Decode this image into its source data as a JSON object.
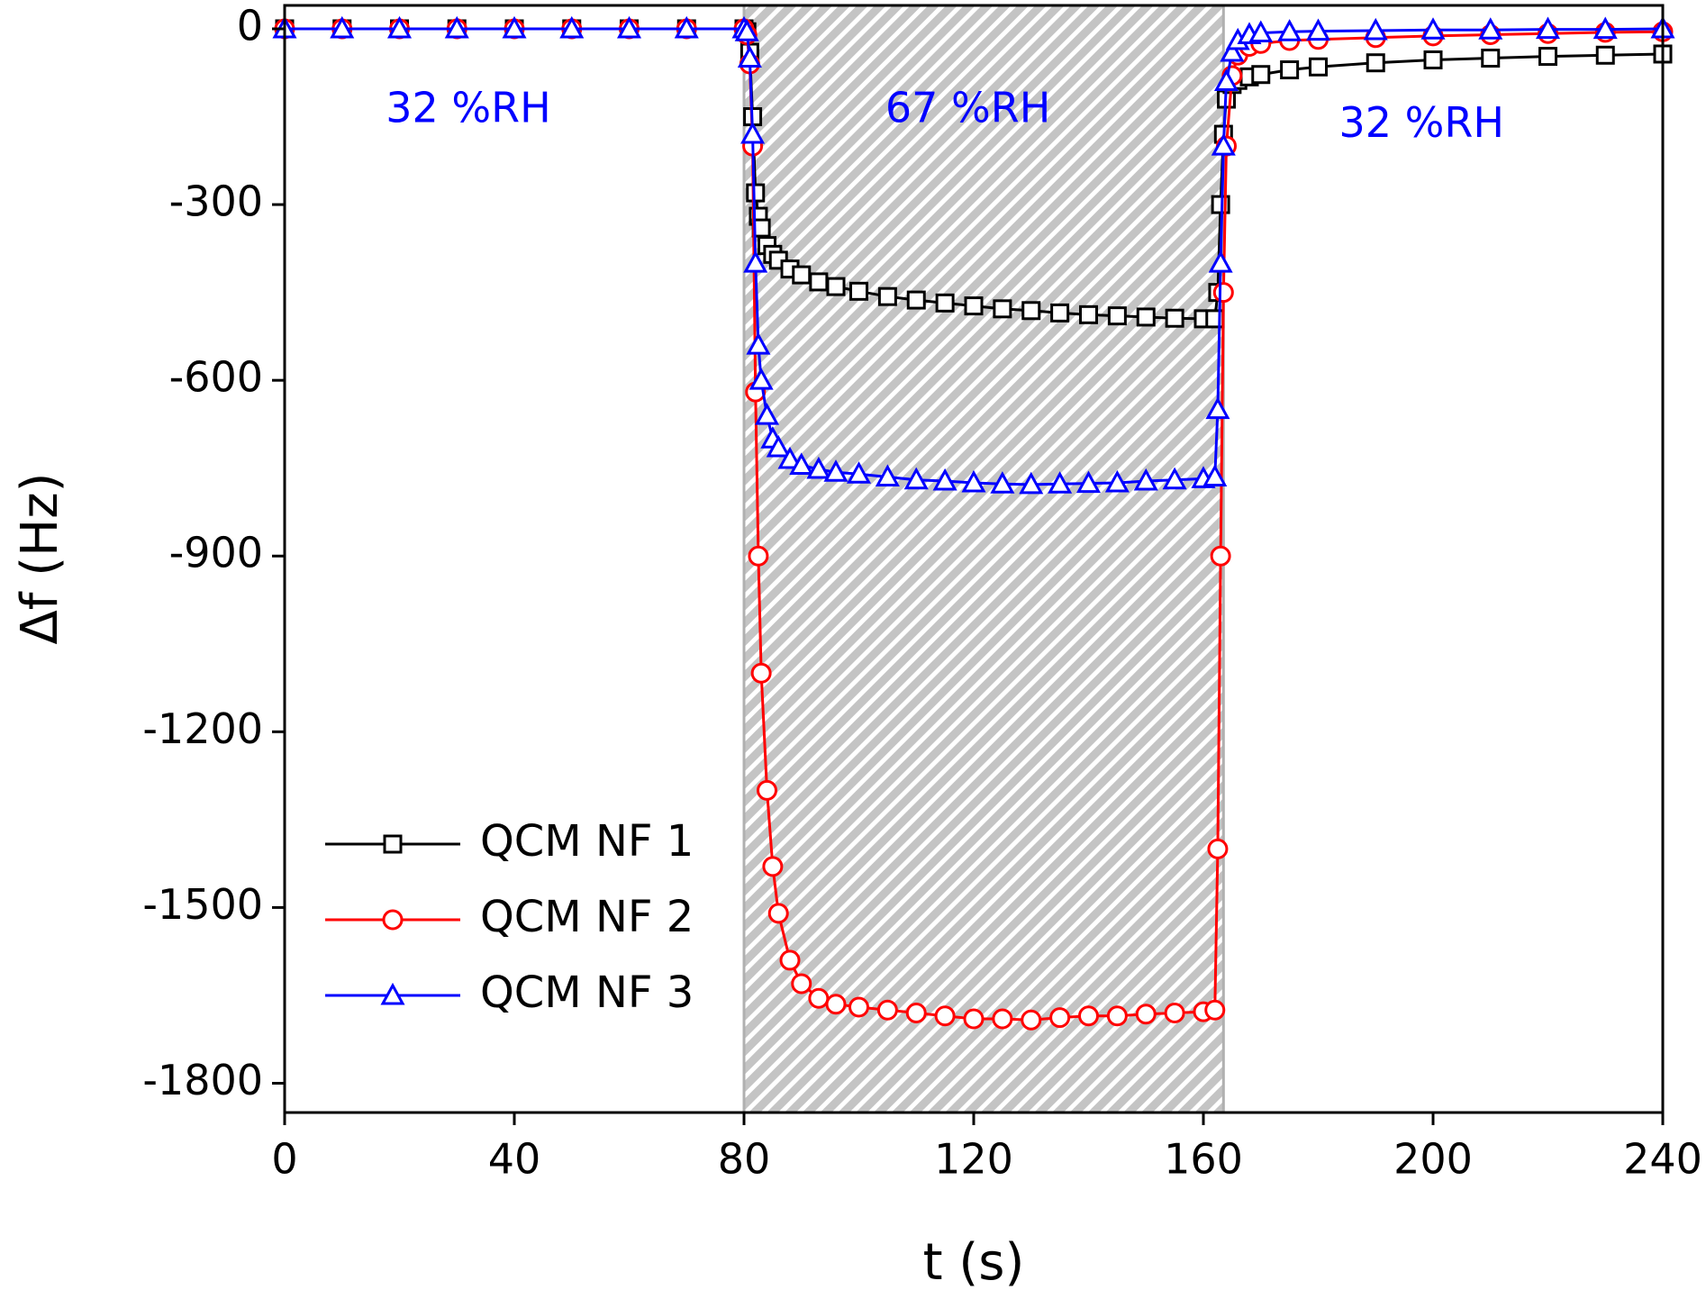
{
  "chart_data": {
    "type": "line",
    "xlabel": "t (s)",
    "ylabel": "Δf (Hz)",
    "xlim": [
      0,
      240
    ],
    "xticks": [
      0,
      40,
      80,
      120,
      160,
      200,
      240
    ],
    "ylim": [
      -1850,
      40
    ],
    "yticks": [
      0,
      -300,
      -600,
      -900,
      -1200,
      -1500,
      -1800
    ],
    "legend": "lower left",
    "shaded_region": [
      80,
      163.5
    ],
    "annotations": [
      {
        "text": "32 %RH",
        "x": 32,
        "y": -140,
        "color": "#0000ff"
      },
      {
        "text": "67 %RH",
        "x": 119,
        "y": -140,
        "color": "#0000ff"
      },
      {
        "text": "32 %RH",
        "x": 198,
        "y": -165,
        "color": "#0000ff"
      }
    ],
    "x": [
      0,
      10,
      20,
      30,
      40,
      50,
      60,
      70,
      80,
      80.5,
      81,
      81.5,
      82,
      82.5,
      83,
      84,
      85,
      86,
      88,
      90,
      93,
      96,
      100,
      105,
      110,
      115,
      120,
      125,
      130,
      135,
      140,
      145,
      150,
      155,
      160,
      162,
      162.5,
      163,
      163.5,
      164,
      165,
      166,
      168,
      170,
      175,
      180,
      190,
      200,
      210,
      220,
      230,
      240
    ],
    "series": [
      {
        "name": "QCM NF 1",
        "color": "#000000",
        "marker": "square",
        "values": [
          0,
          0,
          0,
          0,
          0,
          0,
          0,
          0,
          0,
          -5,
          -40,
          -150,
          -280,
          -320,
          -340,
          -370,
          -385,
          -395,
          -410,
          -420,
          -432,
          -440,
          -448,
          -457,
          -463,
          -468,
          -473,
          -478,
          -481,
          -485,
          -488,
          -490,
          -492,
          -494,
          -495,
          -495,
          -450,
          -300,
          -180,
          -120,
          -95,
          -88,
          -82,
          -78,
          -70,
          -65,
          -58,
          -53,
          -50,
          -47,
          -45,
          -43
        ]
      },
      {
        "name": "QCM NF 2",
        "color": "#ff0000",
        "marker": "circle",
        "values": [
          0,
          0,
          0,
          0,
          0,
          0,
          0,
          0,
          0,
          -10,
          -60,
          -200,
          -620,
          -900,
          -1100,
          -1300,
          -1430,
          -1510,
          -1590,
          -1630,
          -1655,
          -1665,
          -1670,
          -1675,
          -1680,
          -1685,
          -1690,
          -1690,
          -1692,
          -1688,
          -1685,
          -1685,
          -1682,
          -1680,
          -1678,
          -1675,
          -1400,
          -900,
          -450,
          -200,
          -80,
          -45,
          -30,
          -25,
          -20,
          -18,
          -15,
          -12,
          -10,
          -8,
          -6,
          -5
        ]
      },
      {
        "name": "QCM NF 3",
        "color": "#0000ff",
        "marker": "triangle",
        "values": [
          0,
          0,
          0,
          0,
          0,
          0,
          0,
          0,
          0,
          -5,
          -50,
          -180,
          -400,
          -540,
          -600,
          -660,
          -700,
          -715,
          -735,
          -745,
          -752,
          -757,
          -760,
          -765,
          -770,
          -772,
          -775,
          -777,
          -778,
          -777,
          -776,
          -775,
          -772,
          -770,
          -768,
          -765,
          -650,
          -400,
          -200,
          -90,
          -40,
          -20,
          -10,
          -7,
          -5,
          -4,
          -3,
          -2,
          -2,
          -1,
          -1,
          0
        ]
      }
    ]
  }
}
